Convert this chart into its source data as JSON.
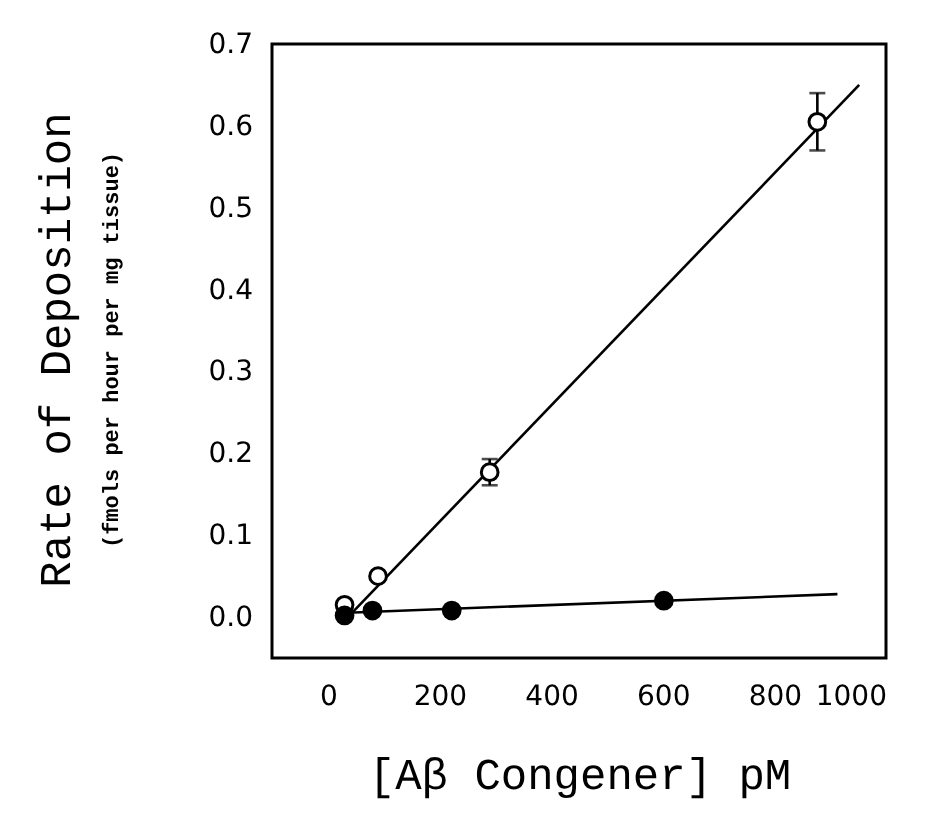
{
  "chart_data": {
    "type": "scatter",
    "xlabel": "[Aβ Congener] pM",
    "ylabel": "Rate of Deposition\n(fmols per hour per mg tissue)",
    "xlim": [
      -100,
      1000
    ],
    "xticks": [
      0,
      200,
      400,
      600,
      800,
      1000
    ],
    "ylim": [
      -0.05,
      0.7
    ],
    "yticks": [
      {
        "value": 0,
        "label": "0.0"
      },
      0.1,
      0.2,
      0.3,
      0.4,
      0.5,
      0.6,
      0.7
    ],
    "grid": false,
    "series": [
      {
        "marker": "circle",
        "color": "#ffffff",
        "x": [
          30,
          90,
          290,
          877
        ],
        "values": [
          0.015,
          0.05,
          0.177,
          0.605
        ],
        "errors": [
          null,
          null,
          0.016,
          0.035
        ]
      },
      {
        "marker": "circle",
        "color": "#000000",
        "x": [
          30,
          80,
          222,
          602
        ],
        "values": [
          0.002,
          0.008,
          0.008,
          0.02
        ]
      },
      {
        "type": "line",
        "color": "#000000",
        "x": [
          36,
          952
        ],
        "values": [
          0,
          0.65
        ]
      },
      {
        "type": "line",
        "color": "#000000",
        "x": [
          24,
          913
        ],
        "values": [
          0.005,
          0.028
        ]
      }
    ]
  }
}
